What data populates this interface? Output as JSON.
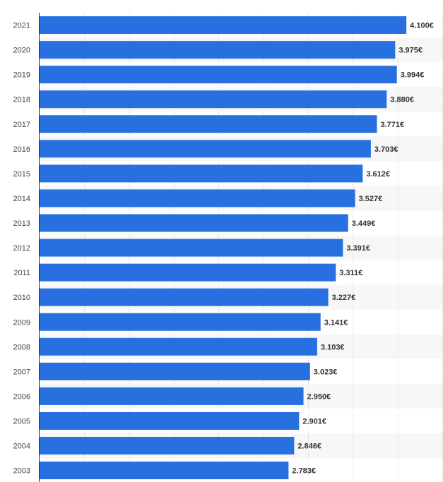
{
  "chart_data": {
    "type": "bar",
    "orientation": "horizontal",
    "title": "",
    "xlabel": "",
    "ylabel": "",
    "grid": true,
    "xlim": [
      0,
      4500
    ],
    "categories": [
      "2021",
      "2020",
      "2019",
      "2018",
      "2017",
      "2016",
      "2015",
      "2014",
      "2013",
      "2012",
      "2011",
      "2010",
      "2009",
      "2008",
      "2007",
      "2006",
      "2005",
      "2004",
      "2003"
    ],
    "values": [
      4100,
      3975,
      3994,
      3880,
      3771,
      3703,
      3612,
      3527,
      3449,
      3391,
      3311,
      3227,
      3141,
      3103,
      3023,
      2950,
      2901,
      2846,
      2783
    ],
    "data_labels": [
      "4.100€",
      "3.975€",
      "3.994€",
      "3.880€",
      "3.771€",
      "3.703€",
      "3.612€",
      "3.527€",
      "3.449€",
      "3.391€",
      "3.311€",
      "3.227€",
      "3.141€",
      "3.103€",
      "3.023€",
      "2.950€",
      "2.901€",
      "2.846€",
      "2.783€"
    ],
    "colors": {
      "bar": "#2870e0",
      "band": "#f7f7f7",
      "grid": "#cccccc",
      "axis": "#333333"
    }
  }
}
